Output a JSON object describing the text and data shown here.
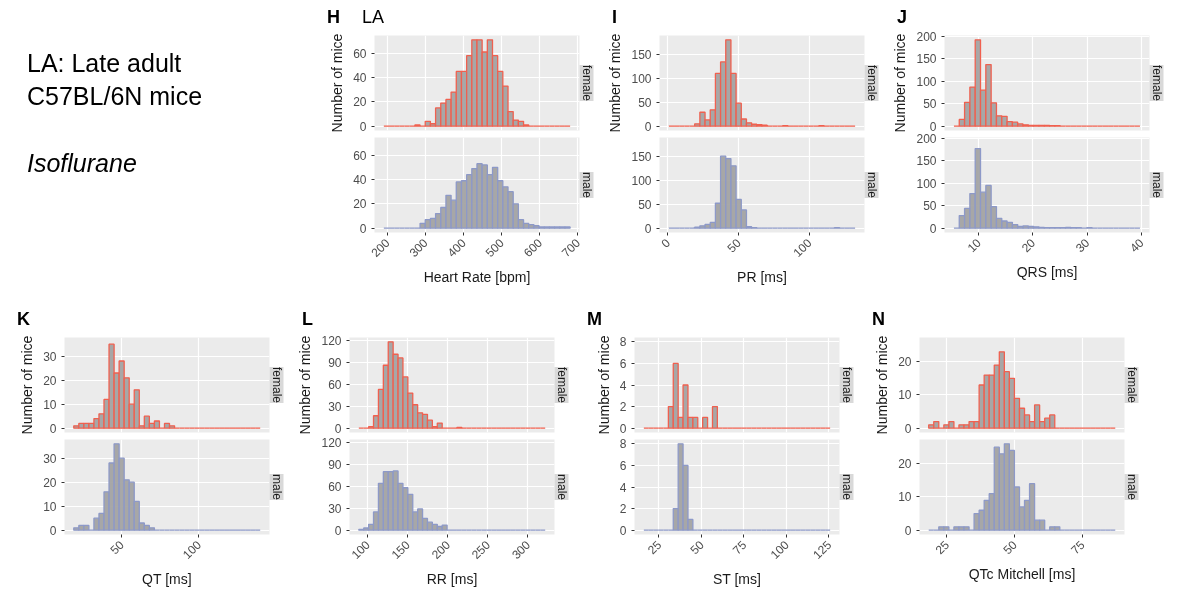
{
  "chart_data": [
    {
      "type": "other",
      "title": "LA: Late adult C57BL/6N mice",
      "subtitle": "Isoflurane"
    },
    {
      "type": "histogram",
      "title": "H",
      "annotations": [
        "LA"
      ],
      "ylabel": "Number of mice",
      "tick_labels": "y",
      "grid": true,
      "xlim": [
        166.5,
        704.5
      ],
      "ylim": [
        -3.55,
        74.55
      ],
      "xticks": [
        200,
        300,
        400,
        500,
        600,
        700
      ],
      "yticks": [
        0,
        20,
        40,
        60
      ],
      "bins": [
        191,
        204.6,
        218.2,
        231.7,
        245.3,
        258.9,
        272.5,
        286.1,
        299.6,
        313.2,
        326.8,
        340.4,
        354,
        367.5,
        381.1,
        394.7,
        408.3,
        421.9,
        435.4,
        449,
        462.6,
        476.2,
        489.8,
        503.3,
        516.9,
        530.5,
        544.1,
        557.7,
        571.2,
        584.8,
        598.4,
        612,
        625.6,
        639.1,
        652.7,
        666.3,
        679.9
      ],
      "series": [
        {
          "name": "female",
          "color": "#f0604f",
          "values": [
            0,
            0,
            0,
            0,
            0,
            0,
            1,
            0,
            4,
            2,
            15,
            19,
            22,
            28,
            45,
            45,
            58,
            71,
            71,
            61,
            71,
            58,
            45,
            33,
            12,
            5,
            4,
            1,
            0,
            0,
            0,
            0,
            0,
            0,
            0,
            0
          ]
        }
      ]
    },
    {
      "type": "histogram",
      "xlabel": "Heart Rate [bpm]",
      "grid": true,
      "xlim": [
        166.5,
        704.5
      ],
      "ylim": [
        -3.55,
        74.55
      ],
      "xticks": [
        200,
        300,
        400,
        500,
        600,
        700
      ],
      "yticks": [
        0,
        20,
        40,
        60
      ],
      "bins": [
        191,
        204.6,
        218.2,
        231.7,
        245.3,
        258.9,
        272.5,
        286.1,
        299.6,
        313.2,
        326.8,
        340.4,
        354,
        367.5,
        381.1,
        394.7,
        408.3,
        421.9,
        435.4,
        449,
        462.6,
        476.2,
        489.8,
        503.3,
        516.9,
        530.5,
        544.1,
        557.7,
        571.2,
        584.8,
        598.4,
        612,
        625.6,
        639.1,
        652.7,
        666.3,
        679.9
      ],
      "series": [
        {
          "name": "male",
          "color": "#8d99c8",
          "values": [
            0,
            0,
            0,
            0,
            0,
            0,
            0,
            4,
            7,
            8,
            12,
            17,
            27,
            23,
            38,
            39,
            44,
            49,
            53,
            52,
            44,
            50,
            39,
            34,
            30,
            20,
            7,
            4,
            3,
            2,
            1,
            1,
            1,
            1,
            1,
            1
          ]
        }
      ]
    },
    {
      "type": "histogram",
      "title": "I",
      "ylabel": "Number of mice",
      "tick_labels": "y",
      "grid": true,
      "xlim": [
        -5.9,
        139.1
      ],
      "ylim": [
        -9,
        189
      ],
      "xticks": [
        0,
        50,
        100
      ],
      "yticks": [
        0,
        50,
        100,
        150
      ],
      "bins": [
        0.7,
        4.36,
        8.02,
        11.68,
        15.34,
        19,
        22.66,
        26.32,
        29.98,
        33.64,
        37.3,
        40.96,
        44.62,
        48.28,
        51.94,
        55.6,
        59.26,
        62.92,
        66.58,
        70.24,
        73.9,
        77.56,
        81.22,
        84.88,
        88.54,
        92.2,
        95.86,
        99.52,
        103.18,
        106.84,
        110.5,
        114.16,
        117.82,
        121.48,
        125.14,
        128.8,
        132.46
      ],
      "series": [
        {
          "name": "female",
          "color": "#f0604f",
          "values": [
            0,
            0,
            0,
            0,
            0,
            5,
            29,
            13,
            34,
            110,
            134,
            180,
            110,
            48,
            15,
            7,
            4,
            3,
            2,
            0,
            0,
            0,
            1,
            0,
            0,
            0,
            0,
            0,
            0,
            1,
            0,
            0,
            0,
            0,
            0,
            0
          ]
        }
      ]
    },
    {
      "type": "histogram",
      "xlabel": "PR [ms]",
      "grid": true,
      "xlim": [
        -5.9,
        139.1
      ],
      "ylim": [
        -9,
        189
      ],
      "xticks": [
        0,
        50,
        100
      ],
      "yticks": [
        0,
        50,
        100,
        150
      ],
      "bins": [
        0.7,
        4.36,
        8.02,
        11.68,
        15.34,
        19,
        22.66,
        26.32,
        29.98,
        33.64,
        37.3,
        40.96,
        44.62,
        48.28,
        51.94,
        55.6,
        59.26,
        62.92,
        66.58,
        70.24,
        73.9,
        77.56,
        81.22,
        84.88,
        88.54,
        92.2,
        95.86,
        99.52,
        103.18,
        106.84,
        110.5,
        114.16,
        117.82,
        121.48,
        125.14,
        128.8,
        132.46
      ],
      "series": [
        {
          "name": "male",
          "color": "#8d99c8",
          "values": [
            0,
            0,
            0,
            0,
            0,
            2,
            5,
            8,
            12,
            52,
            150,
            145,
            130,
            60,
            38,
            3,
            1,
            0,
            0,
            0,
            0,
            0,
            0,
            0,
            0,
            0,
            0,
            0,
            0,
            0,
            0,
            0,
            1,
            0,
            0,
            0
          ]
        }
      ]
    },
    {
      "type": "histogram",
      "title": "J",
      "ylabel": "Number of mice",
      "tick_labels": "y",
      "grid": true,
      "xlim": [
        3.7,
        41.5
      ],
      "ylim": [
        -9.6,
        201.6
      ],
      "xticks": [
        10,
        20,
        30,
        40
      ],
      "yticks": [
        0,
        50,
        100,
        150,
        200
      ],
      "bins": [
        5.44,
        6.42,
        7.4,
        8.38,
        9.36,
        10.34,
        11.32,
        12.3,
        13.28,
        14.26,
        15.24,
        16.22,
        17.2,
        18.18,
        19.16,
        20.14,
        21.12,
        22.1,
        23.08,
        24.06,
        25.04,
        26.02,
        27,
        27.98,
        28.96,
        29.94,
        30.92,
        31.9,
        32.88,
        33.86,
        34.84,
        35.82,
        36.8,
        37.78,
        38.76,
        39.74
      ],
      "series": [
        {
          "name": "female",
          "color": "#f0604f",
          "values": [
            0,
            15,
            53,
            87,
            192,
            80,
            137,
            52,
            23,
            22,
            10,
            9,
            5,
            3,
            2,
            2,
            2,
            2,
            1,
            1,
            0,
            0,
            0,
            0,
            0,
            0,
            0,
            0,
            0,
            0,
            0,
            0,
            0,
            0,
            0
          ]
        }
      ]
    },
    {
      "type": "histogram",
      "xlabel": "QRS [ms]",
      "grid": true,
      "xlim": [
        3.7,
        41.5
      ],
      "ylim": [
        -9.6,
        201.6
      ],
      "xticks": [
        10,
        20,
        30,
        40
      ],
      "yticks": [
        0,
        50,
        100,
        150,
        200
      ],
      "bins": [
        5.44,
        6.42,
        7.4,
        8.38,
        9.36,
        10.34,
        11.32,
        12.3,
        13.28,
        14.26,
        15.24,
        16.22,
        17.2,
        18.18,
        19.16,
        20.14,
        21.12,
        22.1,
        23.08,
        24.06,
        25.04,
        26.02,
        27,
        27.98,
        28.96,
        29.94,
        30.92,
        31.9,
        32.88,
        33.86,
        34.84,
        35.82,
        36.8,
        37.78,
        38.76,
        39.74
      ],
      "series": [
        {
          "name": "male",
          "color": "#8d99c8",
          "values": [
            0,
            28,
            44,
            77,
            177,
            80,
            95,
            48,
            22,
            16,
            13,
            8,
            4,
            5,
            4,
            3,
            2,
            1,
            1,
            1,
            1,
            2,
            1,
            1,
            0,
            1,
            0,
            0,
            0,
            0,
            0,
            0,
            0,
            0,
            0
          ]
        }
      ]
    },
    {
      "type": "histogram",
      "title": "K",
      "ylabel": "Number of mice",
      "tick_labels": "y",
      "grid": true,
      "xlim": [
        13.1,
        145.8
      ],
      "ylim": [
        -1.8,
        37.8
      ],
      "xticks": [
        50,
        100
      ],
      "yticks": [
        0,
        10,
        20,
        30
      ],
      "bins": [
        19.1,
        22.36,
        25.62,
        28.89,
        32.15,
        35.41,
        38.67,
        41.93,
        45.2,
        48.46,
        51.72,
        54.98,
        58.24,
        61.51,
        64.77,
        68.03,
        71.29,
        74.55,
        77.82,
        81.08,
        84.34,
        87.6,
        90.86,
        94.13,
        97.39,
        100.65,
        103.91,
        107.17,
        110.44,
        113.7,
        116.96,
        120.22,
        123.48,
        126.75,
        130.01,
        133.27,
        136.53,
        139.79
      ],
      "series": [
        {
          "name": "female",
          "color": "#f0604f",
          "values": [
            1,
            2,
            2,
            2,
            4,
            6,
            12,
            35,
            23,
            28,
            21,
            10,
            16,
            1,
            5,
            2,
            3,
            0,
            2,
            1,
            0,
            0,
            0,
            0,
            0,
            0,
            0,
            0,
            0,
            0,
            0,
            0,
            0,
            0,
            0,
            0,
            0
          ]
        }
      ]
    },
    {
      "type": "histogram",
      "xlabel": "QT [ms]",
      "grid": true,
      "xlim": [
        13.1,
        145.8
      ],
      "ylim": [
        -1.8,
        37.8
      ],
      "xticks": [
        50,
        100
      ],
      "yticks": [
        0,
        10,
        20,
        30
      ],
      "bins": [
        19.1,
        22.36,
        25.62,
        28.89,
        32.15,
        35.41,
        38.67,
        41.93,
        45.2,
        48.46,
        51.72,
        54.98,
        58.24,
        61.51,
        64.77,
        68.03,
        71.29,
        74.55,
        77.82,
        81.08,
        84.34,
        87.6,
        90.86,
        94.13,
        97.39,
        100.65,
        103.91,
        107.17,
        110.44,
        113.7,
        116.96,
        120.22,
        123.48,
        126.75,
        130.01,
        133.27,
        136.53,
        139.79
      ],
      "series": [
        {
          "name": "male",
          "color": "#8d99c8",
          "values": [
            1,
            2,
            2,
            0,
            5,
            7,
            16,
            28,
            36,
            30,
            21,
            20,
            12,
            3,
            2,
            1,
            0,
            0,
            0,
            0,
            0,
            0,
            0,
            0,
            0,
            0,
            0,
            0,
            0,
            0,
            0,
            0,
            0,
            0,
            0,
            0,
            0
          ]
        }
      ]
    },
    {
      "type": "histogram",
      "title": "L",
      "ylabel": "Number of mice",
      "tick_labels": "y",
      "grid": true,
      "xlim": [
        77.6,
        333.2
      ],
      "ylim": [
        -5.9,
        123.9
      ],
      "xticks": [
        100,
        150,
        200,
        250,
        300
      ],
      "yticks": [
        0,
        30,
        60,
        90,
        120
      ],
      "bins": [
        89.2,
        95.32,
        101.43,
        107.55,
        113.66,
        119.78,
        125.9,
        132.01,
        138.13,
        144.24,
        150.36,
        156.48,
        162.59,
        168.71,
        174.82,
        180.94,
        187.06,
        193.17,
        199.29,
        205.4,
        211.52,
        217.64,
        223.75,
        229.87,
        235.98,
        242.1,
        248.22,
        254.33,
        260.45,
        266.56,
        272.68,
        278.8,
        284.91,
        291.03,
        297.14,
        303.26,
        309.38,
        315.49,
        321.61
      ],
      "series": [
        {
          "name": "female",
          "color": "#f0604f",
          "values": [
            0,
            0,
            2,
            17,
            53,
            86,
            118,
            101,
            96,
            70,
            48,
            32,
            21,
            19,
            11,
            2,
            7,
            0,
            0,
            0,
            1,
            0,
            0,
            0,
            0,
            0,
            0,
            0,
            0,
            0,
            0,
            0,
            0,
            0,
            0,
            0,
            0,
            0
          ]
        }
      ]
    },
    {
      "type": "histogram",
      "xlabel": "RR [ms]",
      "grid": true,
      "xlim": [
        77.6,
        333.2
      ],
      "ylim": [
        -5.9,
        123.9
      ],
      "xticks": [
        100,
        150,
        200,
        250,
        300
      ],
      "yticks": [
        0,
        30,
        60,
        90,
        120
      ],
      "bins": [
        89.2,
        95.32,
        101.43,
        107.55,
        113.66,
        119.78,
        125.9,
        132.01,
        138.13,
        144.24,
        150.36,
        156.48,
        162.59,
        168.71,
        174.82,
        180.94,
        187.06,
        193.17,
        199.29,
        205.4,
        211.52,
        217.64,
        223.75,
        229.87,
        235.98,
        242.1,
        248.22,
        254.33,
        260.45,
        266.56,
        272.68,
        278.8,
        284.91,
        291.03,
        297.14,
        303.26,
        309.38,
        315.49,
        321.61
      ],
      "series": [
        {
          "name": "male",
          "color": "#8d99c8",
          "values": [
            1,
            3,
            8,
            25,
            64,
            80,
            80,
            81,
            64,
            58,
            49,
            25,
            29,
            16,
            11,
            8,
            5,
            7,
            0,
            0,
            0,
            0,
            0,
            0,
            0,
            0,
            0,
            0,
            0,
            0,
            0,
            0,
            0,
            0,
            0,
            0,
            0,
            0
          ]
        }
      ]
    },
    {
      "type": "histogram",
      "title": "M",
      "ylabel": "Number of mice",
      "tick_labels": "y",
      "grid": true,
      "xlim": [
        10.6,
        131.2
      ],
      "ylim": [
        -0.4,
        8.4
      ],
      "xticks": [
        25,
        50,
        75,
        100,
        125
      ],
      "yticks": [
        0,
        2,
        4,
        6,
        8
      ],
      "bins": [
        16.1,
        18.98,
        21.87,
        24.75,
        27.64,
        30.52,
        33.4,
        36.29,
        39.17,
        42.06,
        44.94,
        47.82,
        50.71,
        53.59,
        56.48,
        59.36,
        62.24,
        65.13,
        68.01,
        70.9,
        73.78,
        76.66,
        79.55,
        82.43,
        85.32,
        88.2,
        91.08,
        93.97,
        96.85,
        99.74,
        102.62,
        105.5,
        108.39,
        111.27,
        114.16,
        117.04,
        119.92,
        122.81,
        125.69
      ],
      "series": [
        {
          "name": "female",
          "color": "#f0604f",
          "values": [
            0,
            0,
            0,
            0,
            0,
            2,
            6,
            1,
            4,
            1,
            1,
            0,
            1,
            0,
            2,
            0,
            0,
            0,
            0,
            0,
            0,
            0,
            0,
            0,
            0,
            0,
            0,
            0,
            0,
            0,
            0,
            0,
            0,
            0,
            0,
            0,
            0,
            0
          ]
        }
      ]
    },
    {
      "type": "histogram",
      "xlabel": "ST [ms]",
      "grid": true,
      "xlim": [
        10.6,
        131.2
      ],
      "ylim": [
        -0.4,
        8.4
      ],
      "xticks": [
        25,
        50,
        75,
        100,
        125
      ],
      "yticks": [
        0,
        2,
        4,
        6,
        8
      ],
      "bins": [
        16.1,
        18.98,
        21.87,
        24.75,
        27.64,
        30.52,
        33.4,
        36.29,
        39.17,
        42.06,
        44.94,
        47.82,
        50.71,
        53.59,
        56.48,
        59.36,
        62.24,
        65.13,
        68.01,
        70.9,
        73.78,
        76.66,
        79.55,
        82.43,
        85.32,
        88.2,
        91.08,
        93.97,
        96.85,
        99.74,
        102.62,
        105.5,
        108.39,
        111.27,
        114.16,
        117.04,
        119.92,
        122.81,
        125.69
      ],
      "series": [
        {
          "name": "male",
          "color": "#8d99c8",
          "values": [
            0,
            0,
            0,
            0,
            0,
            0,
            2,
            8,
            6,
            1,
            0,
            0,
            0,
            0,
            0,
            0,
            0,
            0,
            0,
            0,
            0,
            0,
            0,
            0,
            0,
            0,
            0,
            0,
            0,
            0,
            0,
            0,
            0,
            0,
            0,
            0,
            0,
            0
          ]
        }
      ]
    },
    {
      "type": "histogram",
      "title": "N",
      "ylabel": "Number of mice",
      "tick_labels": "y",
      "grid": true,
      "xlim": [
        14.9,
        90.6
      ],
      "ylim": [
        -1.3,
        27.3
      ],
      "xticks": [
        25,
        50,
        75
      ],
      "yticks": [
        0,
        10,
        20
      ],
      "bins": [
        18.3,
        20.16,
        22.02,
        23.89,
        25.75,
        27.61,
        29.47,
        31.33,
        33.2,
        35.06,
        36.92,
        38.78,
        40.64,
        42.51,
        44.37,
        46.23,
        48.09,
        49.95,
        51.82,
        53.68,
        55.54,
        57.4,
        59.26,
        61.13,
        62.99,
        64.85,
        66.71,
        68.57,
        70.44,
        72.3,
        74.16,
        76.02,
        77.88,
        79.75,
        81.61,
        83.47,
        85.33,
        87.19
      ],
      "series": [
        {
          "name": "female",
          "color": "#f0604f",
          "values": [
            1,
            2,
            0,
            1,
            2,
            0,
            1,
            1,
            2,
            2,
            13,
            16,
            16,
            19,
            23,
            17,
            15,
            9,
            6,
            4,
            2,
            7,
            2,
            3,
            4,
            0,
            0,
            0,
            0,
            0,
            0,
            0,
            0,
            0,
            0,
            0,
            0
          ]
        }
      ]
    },
    {
      "type": "histogram",
      "xlabel": "QTc Mitchell [ms]",
      "grid": true,
      "xlim": [
        14.9,
        90.6
      ],
      "ylim": [
        -1.3,
        27.3
      ],
      "xticks": [
        25,
        50,
        75
      ],
      "yticks": [
        0,
        10,
        20
      ],
      "bins": [
        18.3,
        20.16,
        22.02,
        23.89,
        25.75,
        27.61,
        29.47,
        31.33,
        33.2,
        35.06,
        36.92,
        38.78,
        40.64,
        42.51,
        44.37,
        46.23,
        48.09,
        49.95,
        51.82,
        53.68,
        55.54,
        57.4,
        59.26,
        61.13,
        62.99,
        64.85,
        66.71,
        68.57,
        70.44,
        72.3,
        74.16,
        76.02,
        77.88,
        79.75,
        81.61,
        83.47,
        85.33,
        87.19
      ],
      "series": [
        {
          "name": "male",
          "color": "#8d99c8",
          "values": [
            0,
            0,
            1,
            1,
            0,
            1,
            1,
            1,
            0,
            5,
            6,
            9,
            11,
            25,
            23,
            26,
            24,
            13,
            7,
            9,
            14,
            3,
            3,
            0,
            1,
            1,
            0,
            0,
            0,
            0,
            0,
            0,
            0,
            0,
            0,
            0,
            0
          ]
        }
      ]
    }
  ]
}
